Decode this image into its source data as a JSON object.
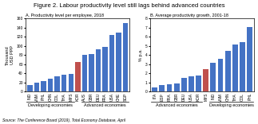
{
  "title": "Figure 2. Labour productivity level still lags behind advanced countries",
  "annotations": [
    "Source: The Conference Board (2019), Total Economy Database, April"
  ],
  "chart_data": [
    {
      "type": "bar",
      "title": "A. Productivity level per employee, 2018",
      "ylabel": "Thousand\nUSD PPP",
      "categories": [
        "IND",
        "VNM",
        "PHL",
        "CHN",
        "COL",
        "THA",
        "MYS",
        "KOR",
        "AUS",
        "GBR",
        "DEU",
        "FRA",
        "USA",
        "CHE",
        "SGP"
      ],
      "values": [
        15,
        20,
        23,
        28,
        33,
        37,
        39,
        65,
        80,
        82,
        93,
        98,
        125,
        130,
        150
      ],
      "colors": [
        "#4472C4",
        "#4472C4",
        "#4472C4",
        "#4472C4",
        "#4472C4",
        "#4472C4",
        "#4472C4",
        "#C0504D",
        "#4472C4",
        "#4472C4",
        "#4472C4",
        "#4472C4",
        "#4472C4",
        "#4472C4",
        "#4472C4"
      ],
      "ylim": [
        0,
        160
      ],
      "yticks": [
        0,
        20,
        40,
        60,
        80,
        100,
        120,
        140,
        160
      ],
      "grid": false,
      "annotations": [
        {
          "text": "Developing economies",
          "from": "IND",
          "to": "MYS"
        },
        {
          "text": "Advanced economies",
          "from": "AUS",
          "to": "SGP"
        }
      ]
    },
    {
      "type": "bar",
      "title": "B. Average productivity growth, 2001-18",
      "ylabel": "% p.a.",
      "categories": [
        "ITA",
        "ESP",
        "FRA",
        "GBR",
        "DEU",
        "USA",
        "KOR",
        "MYS",
        "IND",
        "VNM",
        "CHN",
        "THA",
        "COL",
        "PHL"
      ],
      "values": [
        0.5,
        0.7,
        0.8,
        0.9,
        1.5,
        1.7,
        1.8,
        2.5,
        3.2,
        3.6,
        4.5,
        5.2,
        5.4,
        7.1
      ],
      "colors": [
        "#4472C4",
        "#4472C4",
        "#4472C4",
        "#4472C4",
        "#4472C4",
        "#4472C4",
        "#4472C4",
        "#C0504D",
        "#4472C4",
        "#4472C4",
        "#4472C4",
        "#4472C4",
        "#4472C4",
        "#4472C4"
      ],
      "ylim": [
        0,
        8
      ],
      "yticks": [
        0,
        1,
        2,
        3,
        4,
        5,
        6,
        7,
        8
      ],
      "grid": false,
      "annotations": [
        {
          "text": "Advanced economies",
          "from": "ITA",
          "to": "KOR"
        },
        {
          "text": "Developing economies",
          "from": "IND",
          "to": "PHL"
        }
      ]
    }
  ]
}
